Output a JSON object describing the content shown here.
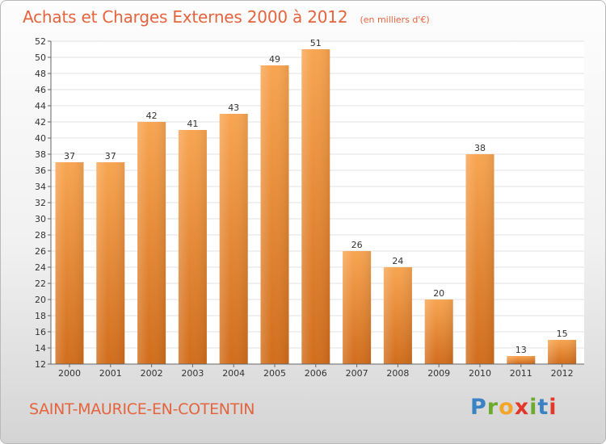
{
  "header": {
    "title": "Achats et Charges Externes 2000 à 2012",
    "subtitle": "(en milliers d'€)"
  },
  "footer": {
    "city": "SAINT-MAURICE-EN-COTENTIN",
    "logo": {
      "letters": [
        "P",
        "r",
        "o",
        "x",
        "i",
        "t",
        "i"
      ],
      "colors": [
        "#3a82c4",
        "#6cab2e",
        "#f3a526",
        "#e2382a",
        "#6cab2e",
        "#3a82c4",
        "#e2382a"
      ]
    }
  },
  "colors": {
    "title": "#e4643d",
    "bar_light": "#f8a551",
    "bar_dark": "#d16d1c",
    "grid": "#e2e2e2",
    "axis": "#666666"
  },
  "chart_data": {
    "type": "bar",
    "categories": [
      "2000",
      "2001",
      "2002",
      "2003",
      "2004",
      "2005",
      "2006",
      "2007",
      "2008",
      "2009",
      "2010",
      "2011",
      "2012"
    ],
    "values": [
      37,
      37,
      42,
      41,
      43,
      49,
      51,
      26,
      24,
      20,
      38,
      13,
      15
    ],
    "ylim": [
      12,
      52
    ],
    "yticks": [
      12,
      14,
      16,
      18,
      20,
      22,
      24,
      26,
      28,
      30,
      32,
      34,
      36,
      38,
      40,
      42,
      44,
      46,
      48,
      50,
      52
    ],
    "grid": true,
    "title": "Achats et Charges Externes 2000 à 2012",
    "xlabel": "",
    "ylabel": ""
  }
}
